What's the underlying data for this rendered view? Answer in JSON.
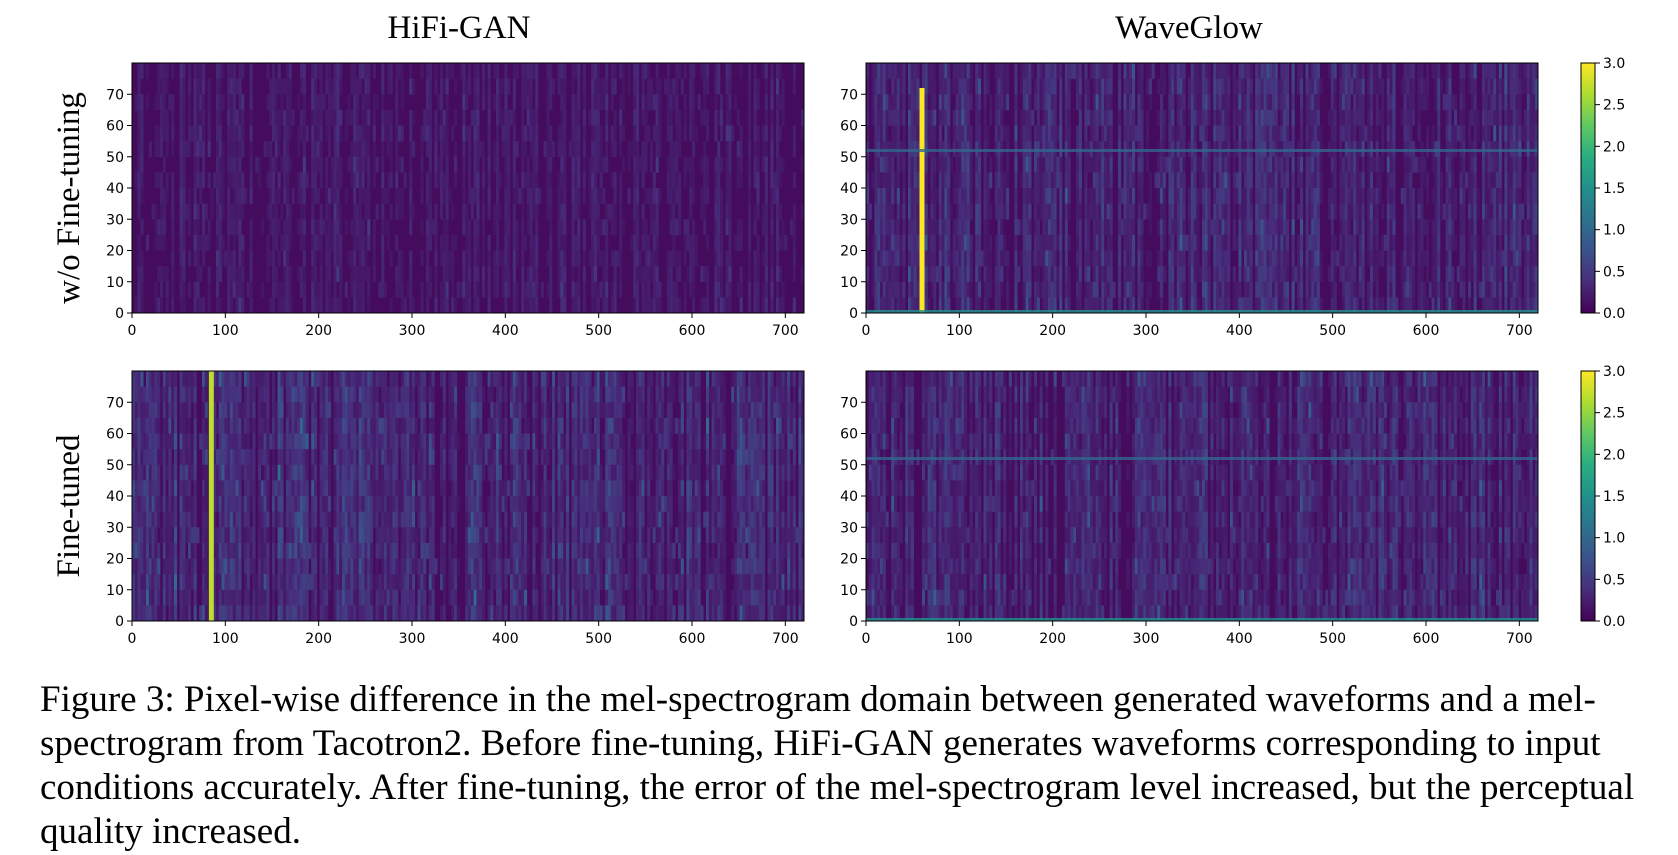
{
  "columns": [
    "HiFi-GAN",
    "WaveGlow"
  ],
  "rows": [
    "w/o Fine-tuning",
    "Fine-tuned"
  ],
  "caption": "Figure 3: Pixel-wise difference in the mel-spectrogram domain between generated waveforms and a mel-spectrogram from Tacotron2. Before fine-tuning, HiFi-GAN generates waveforms corresponding to input conditions accurately. After fine-tuning, the error of the mel-spectrogram level increased, but the perceptual quality increased.",
  "chart_data": [
    {
      "type": "heatmap",
      "title": "HiFi-GAN",
      "row_label": "w/o Fine-tuning",
      "x_ticks": [
        "0",
        "100",
        "200",
        "300",
        "400",
        "500",
        "600",
        "700"
      ],
      "y_ticks": [
        "0",
        "10",
        "20",
        "30",
        "40",
        "50",
        "60",
        "70"
      ],
      "xlim": [
        0,
        720
      ],
      "ylim": [
        0,
        80
      ],
      "noise_level": 0.25,
      "highlights": []
    },
    {
      "type": "heatmap",
      "title": "WaveGlow",
      "row_label": "w/o Fine-tuning",
      "x_ticks": [
        "0",
        "100",
        "200",
        "300",
        "400",
        "500",
        "600",
        "700"
      ],
      "y_ticks": [
        "0",
        "10",
        "20",
        "30",
        "40",
        "50",
        "60",
        "70"
      ],
      "xlim": [
        0,
        720
      ],
      "ylim": [
        0,
        80
      ],
      "noise_level": 0.5,
      "highlights": [
        {
          "x": 60,
          "y_from": 0,
          "y_to": 72,
          "value": 3.0
        },
        {
          "y": 52,
          "x_from": 0,
          "x_to": 720,
          "value": 1.0
        },
        {
          "y": 0,
          "x_from": 0,
          "x_to": 720,
          "value": 1.5
        }
      ],
      "colorbar": {
        "min": 0.0,
        "max": 3.0,
        "ticks": [
          "0.0",
          "0.5",
          "1.0",
          "1.5",
          "2.0",
          "2.5",
          "3.0"
        ]
      }
    },
    {
      "type": "heatmap",
      "title": "HiFi-GAN",
      "row_label": "Fine-tuned",
      "x_ticks": [
        "0",
        "100",
        "200",
        "300",
        "400",
        "500",
        "600",
        "700"
      ],
      "y_ticks": [
        "0",
        "10",
        "20",
        "30",
        "40",
        "50",
        "60",
        "70"
      ],
      "xlim": [
        0,
        720
      ],
      "ylim": [
        0,
        80
      ],
      "noise_level": 0.6,
      "highlights": [
        {
          "x": 85,
          "y_from": 0,
          "y_to": 80,
          "value": 2.7
        }
      ]
    },
    {
      "type": "heatmap",
      "title": "WaveGlow",
      "row_label": "Fine-tuned",
      "x_ticks": [
        "0",
        "100",
        "200",
        "300",
        "400",
        "500",
        "600",
        "700"
      ],
      "y_ticks": [
        "0",
        "10",
        "20",
        "30",
        "40",
        "50",
        "60",
        "70"
      ],
      "xlim": [
        0,
        720
      ],
      "ylim": [
        0,
        80
      ],
      "noise_level": 0.5,
      "highlights": [
        {
          "y": 52,
          "x_from": 0,
          "x_to": 720,
          "value": 1.0
        },
        {
          "y": 0,
          "x_from": 0,
          "x_to": 720,
          "value": 1.5
        }
      ],
      "colorbar": {
        "min": 0.0,
        "max": 3.0,
        "ticks": [
          "0.0",
          "0.5",
          "1.0",
          "1.5",
          "2.0",
          "2.5",
          "3.0"
        ]
      }
    }
  ]
}
